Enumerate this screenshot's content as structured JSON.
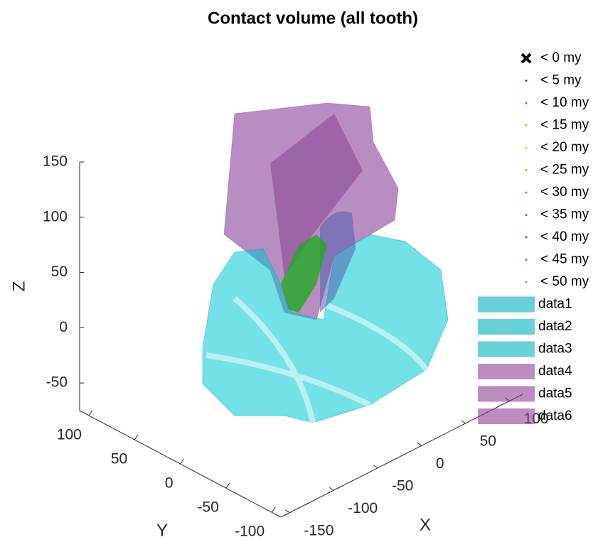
{
  "chart_data": {
    "type": "surface3d",
    "title": "Contact volume (all tooth)",
    "xlabel": "X",
    "ylabel": "Y",
    "zlabel": "Z",
    "xlim": [
      -160,
      115
    ],
    "xticks": [
      -150,
      -100,
      -50,
      0,
      50,
      100
    ],
    "ylim": [
      110,
      -110
    ],
    "yticks": [
      100,
      50,
      0,
      -50,
      -100
    ],
    "zlim": [
      -75,
      150
    ],
    "zticks": [
      150,
      100,
      50,
      0,
      -50
    ],
    "series": [
      {
        "name": "< 0 my",
        "color": "#000000",
        "marker": "x"
      },
      {
        "name": "< 5 my",
        "color": "#a2142f",
        "marker": "dot"
      },
      {
        "name": "< 10 my",
        "color": "#d95319",
        "marker": "dot"
      },
      {
        "name": "< 15 my",
        "color": "#edb120",
        "marker": "dot"
      },
      {
        "name": "< 20 my",
        "color": "#f2d21b",
        "marker": "dot"
      },
      {
        "name": "< 25 my",
        "color": "#c8b400",
        "marker": "dot"
      },
      {
        "name": "< 30 my",
        "color": "#77ac30",
        "marker": "dot"
      },
      {
        "name": "< 35 my",
        "color": "#2e8b2e",
        "marker": "dot"
      },
      {
        "name": "< 40 my",
        "color": "#009000",
        "marker": "dot"
      },
      {
        "name": "< 45 my",
        "color": "#33aa33",
        "marker": "dot"
      },
      {
        "name": "< 50 my",
        "color": "#999999",
        "marker": "dot"
      },
      {
        "name": "data1",
        "color": "#00b4bd",
        "marker": "patch"
      },
      {
        "name": "data2",
        "color": "#00b4bd",
        "marker": "patch"
      },
      {
        "name": "data3",
        "color": "#00b4bd",
        "marker": "patch"
      },
      {
        "name": "data4",
        "color": "#8e4196",
        "marker": "patch"
      },
      {
        "name": "data5",
        "color": "#8e4196",
        "marker": "patch"
      },
      {
        "name": "data6",
        "color": "#8e4196",
        "marker": "patch"
      }
    ]
  }
}
